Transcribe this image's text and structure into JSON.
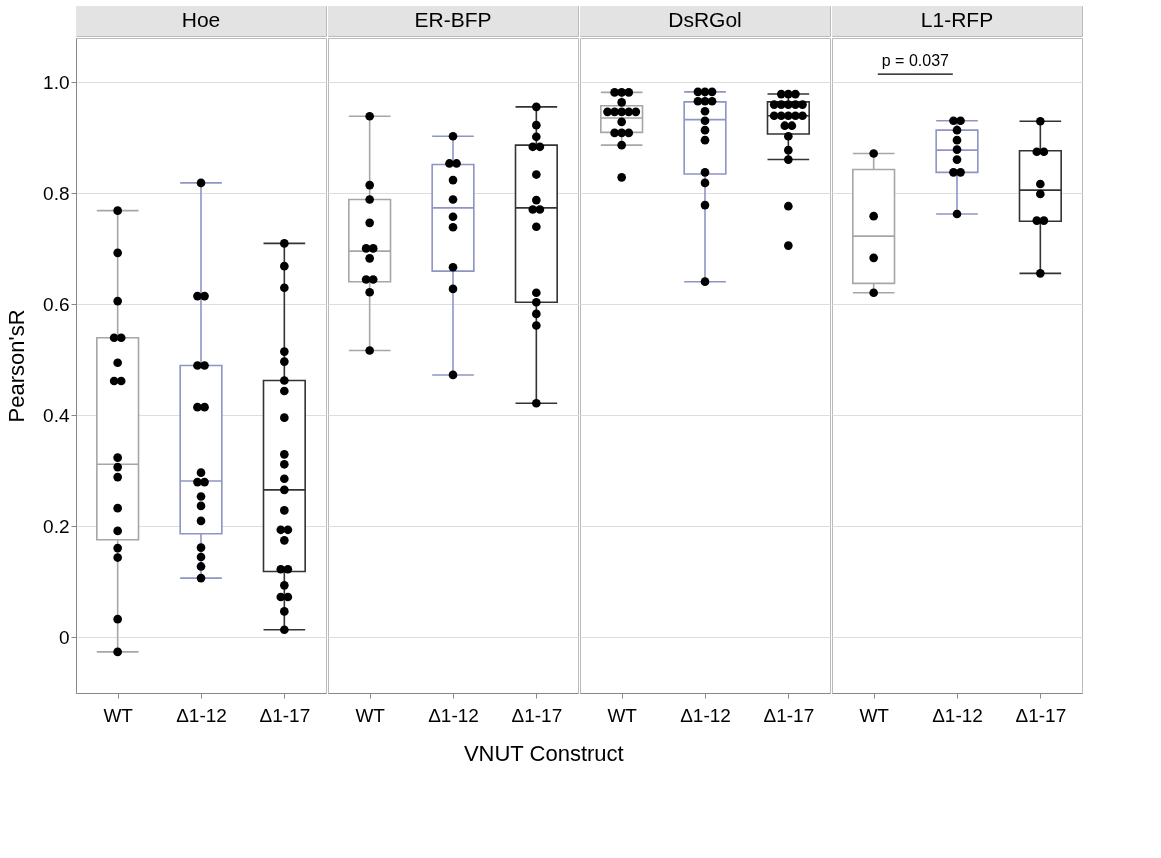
{
  "chart_data": [
    {
      "type": "box",
      "title": "Hoe",
      "ylabel": "Pearson'sR",
      "categories": [
        "WT",
        "Δ1-12",
        "Δ1-17"
      ],
      "colors": [
        "#a6a6a6",
        "#8e95c4",
        "#333333"
      ],
      "boxes": [
        {
          "low": -0.026,
          "q1": 0.176,
          "median": 0.312,
          "q3": 0.54,
          "high": 0.769
        },
        {
          "low": 0.107,
          "q1": 0.187,
          "median": 0.282,
          "q3": 0.49,
          "high": 0.819
        },
        {
          "low": 0.014,
          "q1": 0.119,
          "median": 0.266,
          "q3": 0.463,
          "high": 0.71
        }
      ],
      "series": [
        {
          "type": "scatter",
          "color": "#000000",
          "x": [
            "WT",
            "WT",
            "WT",
            "WT",
            "WT",
            "WT",
            "WT",
            "WT",
            "WT",
            "WT",
            "WT",
            "WT",
            "WT",
            "WT",
            "WT",
            "WT",
            "WT",
            "Δ1-12",
            "Δ1-12",
            "Δ1-12",
            "Δ1-12",
            "Δ1-12",
            "Δ1-12",
            "Δ1-12",
            "Δ1-12",
            "Δ1-12",
            "Δ1-12",
            "Δ1-12",
            "Δ1-12",
            "Δ1-12",
            "Δ1-12",
            "Δ1-12",
            "Δ1-12",
            "Δ1-12",
            "Δ1-17",
            "Δ1-17",
            "Δ1-17",
            "Δ1-17",
            "Δ1-17",
            "Δ1-17",
            "Δ1-17",
            "Δ1-17",
            "Δ1-17",
            "Δ1-17",
            "Δ1-17",
            "Δ1-17",
            "Δ1-17",
            "Δ1-17",
            "Δ1-17",
            "Δ1-17",
            "Δ1-17",
            "Δ1-17",
            "Δ1-17",
            "Δ1-17",
            "Δ1-17",
            "Δ1-17",
            "Δ1-17"
          ],
          "values": [
            0.769,
            0.693,
            0.606,
            0.54,
            0.54,
            0.495,
            0.462,
            0.462,
            0.324,
            0.307,
            0.289,
            0.233,
            0.192,
            0.161,
            0.144,
            0.033,
            -0.026,
            0.819,
            0.615,
            0.615,
            0.49,
            0.49,
            0.415,
            0.415,
            0.297,
            0.28,
            0.28,
            0.254,
            0.237,
            0.21,
            0.162,
            0.145,
            0.128,
            0.107,
            0.71,
            0.669,
            0.63,
            0.515,
            0.497,
            0.463,
            0.444,
            0.396,
            0.33,
            0.312,
            0.286,
            0.266,
            0.229,
            0.194,
            0.194,
            0.175,
            0.123,
            0.123,
            0.094,
            0.073,
            0.073,
            0.047,
            0.014
          ]
        }
      ],
      "ylim": [
        -0.1,
        1.08
      ],
      "yticks": [
        0,
        0.2,
        0.4,
        0.6,
        0.8,
        {
          "value": 1,
          "label": "1.0"
        }
      ],
      "grid": "y"
    },
    {
      "type": "box",
      "title": "ER-BFP",
      "xlabel": "VNUT Construct",
      "categories": [
        "WT",
        "Δ1-12",
        "Δ1-17"
      ],
      "colors": [
        "#a6a6a6",
        "#8e95c4",
        "#333333"
      ],
      "boxes": [
        {
          "low": 0.517,
          "q1": 0.641,
          "median": 0.696,
          "q3": 0.789,
          "high": 0.939
        },
        {
          "low": 0.473,
          "q1": 0.66,
          "median": 0.774,
          "q3": 0.852,
          "high": 0.903
        },
        {
          "low": 0.422,
          "q1": 0.604,
          "median": 0.774,
          "q3": 0.887,
          "high": 0.956
        }
      ],
      "series": [
        {
          "type": "scatter",
          "color": "#000000",
          "x": [
            "WT",
            "WT",
            "WT",
            "WT",
            "WT",
            "WT",
            "WT",
            "WT",
            "WT",
            "WT",
            "WT",
            "Δ1-12",
            "Δ1-12",
            "Δ1-12",
            "Δ1-12",
            "Δ1-12",
            "Δ1-12",
            "Δ1-12",
            "Δ1-12",
            "Δ1-12",
            "Δ1-12",
            "Δ1-17",
            "Δ1-17",
            "Δ1-17",
            "Δ1-17",
            "Δ1-17",
            "Δ1-17",
            "Δ1-17",
            "Δ1-17",
            "Δ1-17",
            "Δ1-17",
            "Δ1-17",
            "Δ1-17",
            "Δ1-17",
            "Δ1-17",
            "Δ1-17"
          ],
          "values": [
            0.939,
            0.815,
            0.789,
            0.747,
            0.701,
            0.701,
            0.683,
            0.645,
            0.645,
            0.622,
            0.517,
            0.903,
            0.854,
            0.854,
            0.824,
            0.789,
            0.758,
            0.739,
            0.667,
            0.628,
            0.473,
            0.956,
            0.923,
            0.902,
            0.884,
            0.884,
            0.834,
            0.788,
            0.771,
            0.771,
            0.74,
            0.621,
            0.604,
            0.583,
            0.562,
            0.422
          ]
        }
      ],
      "ylim": [
        -0.1,
        1.08
      ],
      "yticks": [
        0,
        0.2,
        0.4,
        0.6,
        0.8,
        1
      ],
      "grid": "y",
      "tick_labels": "x"
    },
    {
      "type": "box",
      "title": "DsRGol",
      "categories": [
        "WT",
        "Δ1-12",
        "Δ1-17"
      ],
      "colors": [
        "#a6a6a6",
        "#8e95c4",
        "#333333"
      ],
      "boxes": [
        {
          "low": 0.887,
          "q1": 0.91,
          "median": 0.936,
          "q3": 0.958,
          "high": 0.982
        },
        {
          "low": 0.641,
          "q1": 0.835,
          "median": 0.933,
          "q3": 0.965,
          "high": 0.983
        },
        {
          "low": 0.861,
          "q1": 0.907,
          "median": 0.94,
          "q3": 0.965,
          "high": 0.979
        }
      ],
      "series": [
        {
          "type": "scatter",
          "color": "#000000",
          "x": [
            "WT",
            "WT",
            "WT",
            "WT",
            "WT",
            "WT",
            "WT",
            "WT",
            "WT",
            "WT",
            "WT",
            "WT",
            "WT",
            "WT",
            "WT",
            "Δ1-12",
            "Δ1-12",
            "Δ1-12",
            "Δ1-12",
            "Δ1-12",
            "Δ1-12",
            "Δ1-12",
            "Δ1-12",
            "Δ1-12",
            "Δ1-12",
            "Δ1-12",
            "Δ1-12",
            "Δ1-12",
            "Δ1-12",
            "Δ1-17",
            "Δ1-17",
            "Δ1-17",
            "Δ1-17",
            "Δ1-17",
            "Δ1-17",
            "Δ1-17",
            "Δ1-17",
            "Δ1-17",
            "Δ1-17",
            "Δ1-17",
            "Δ1-17",
            "Δ1-17",
            "Δ1-17",
            "Δ1-17",
            "Δ1-17",
            "Δ1-17",
            "Δ1-17",
            "Δ1-17",
            "Δ1-17"
          ],
          "values": [
            0.982,
            0.982,
            0.982,
            0.964,
            0.947,
            0.947,
            0.947,
            0.947,
            0.947,
            0.929,
            0.909,
            0.909,
            0.909,
            0.887,
            0.829,
            0.983,
            0.983,
            0.983,
            0.966,
            0.966,
            0.966,
            0.948,
            0.931,
            0.914,
            0.896,
            0.838,
            0.819,
            0.779,
            0.641,
            0.979,
            0.979,
            0.979,
            0.96,
            0.96,
            0.96,
            0.96,
            0.96,
            0.94,
            0.94,
            0.94,
            0.94,
            0.94,
            0.922,
            0.922,
            0.903,
            0.878,
            0.861,
            0.777,
            0.706
          ]
        }
      ],
      "ylim": [
        -0.1,
        1.08
      ],
      "yticks": [
        0,
        0.2,
        0.4,
        0.6,
        0.8,
        1
      ],
      "grid": "y",
      "tick_labels": "x"
    },
    {
      "type": "box",
      "title": "L1-RFP",
      "categories": [
        "WT",
        "Δ1-12",
        "Δ1-17"
      ],
      "colors": [
        "#a6a6a6",
        "#8e95c4",
        "#333333"
      ],
      "boxes": [
        {
          "low": 0.621,
          "q1": 0.638,
          "median": 0.723,
          "q3": 0.843,
          "high": 0.872
        },
        {
          "low": 0.763,
          "q1": 0.838,
          "median": 0.878,
          "q3": 0.914,
          "high": 0.931
        },
        {
          "low": 0.656,
          "q1": 0.75,
          "median": 0.806,
          "q3": 0.877,
          "high": 0.93
        }
      ],
      "series": [
        {
          "type": "scatter",
          "color": "#000000",
          "x": [
            "WT",
            "WT",
            "WT",
            "WT",
            "Δ1-12",
            "Δ1-12",
            "Δ1-12",
            "Δ1-12",
            "Δ1-12",
            "Δ1-12",
            "Δ1-12",
            "Δ1-12",
            "Δ1-12",
            "Δ1-17",
            "Δ1-17",
            "Δ1-17",
            "Δ1-17",
            "Δ1-17",
            "Δ1-17",
            "Δ1-17",
            "Δ1-17"
          ],
          "values": [
            0.872,
            0.759,
            0.684,
            0.621,
            0.931,
            0.931,
            0.914,
            0.896,
            0.879,
            0.861,
            0.838,
            0.838,
            0.763,
            0.93,
            0.875,
            0.875,
            0.817,
            0.799,
            0.751,
            0.751,
            0.656
          ]
        }
      ],
      "annotations": [
        "p = 0.037"
      ],
      "ylim": [
        -0.1,
        1.08
      ],
      "yticks": [
        0,
        0.2,
        0.4,
        0.6,
        0.8,
        1
      ],
      "grid": "y",
      "tick_labels": "x"
    }
  ]
}
